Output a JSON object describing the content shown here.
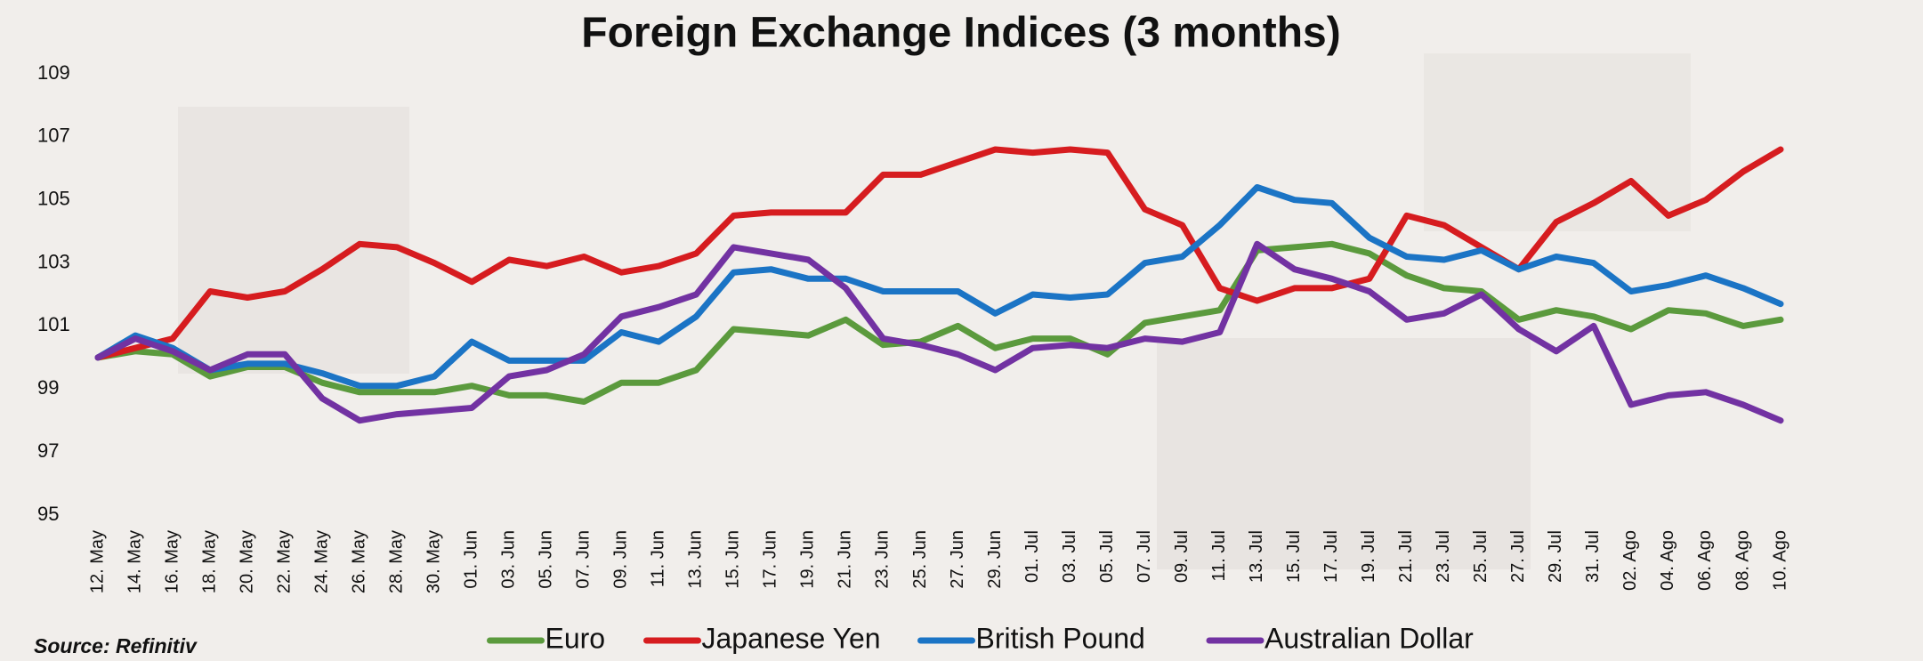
{
  "chart_data": {
    "type": "line",
    "title": "Foreign Exchange Indices (3 months)",
    "source": "Source: Refinitiv",
    "categories": [
      "12. May",
      "14. May",
      "16. May",
      "18. May",
      "20. May",
      "22. May",
      "24. May",
      "26. May",
      "28. May",
      "30. May",
      "01. Jun",
      "03. Jun",
      "05. Jun",
      "07. Jun",
      "09. Jun",
      "11. Jun",
      "13. Jun",
      "15. Jun",
      "17. Jun",
      "19. Jun",
      "21. Jun",
      "23. Jun",
      "25. Jun",
      "27. Jun",
      "29. Jun",
      "01. Jul",
      "03. Jul",
      "05. Jul",
      "07. Jul",
      "09. Jul",
      "11. Jul",
      "13. Jul",
      "15. Jul",
      "17. Jul",
      "19. Jul",
      "21. Jul",
      "23. Jul",
      "25. Jul",
      "27. Jul",
      "29. Jul",
      "31. Jul",
      "02. Ago",
      "04. Ago",
      "06. Ago",
      "08. Ago",
      "10. Ago"
    ],
    "series": [
      {
        "name": "Euro",
        "color": "#5b9a3d",
        "values": [
          100,
          100.2,
          100.1,
          99.4,
          99.7,
          99.7,
          99.2,
          98.9,
          98.9,
          98.9,
          99.1,
          98.8,
          98.8,
          98.6,
          99.2,
          99.2,
          99.6,
          100.9,
          100.8,
          100.7,
          101.2,
          100.4,
          100.5,
          101.0,
          100.3,
          100.6,
          100.6,
          100.1,
          101.1,
          101.3,
          101.5,
          103.4,
          103.5,
          103.6,
          103.3,
          102.6,
          102.2,
          102.1,
          101.2,
          101.5,
          101.3,
          100.9,
          101.5,
          101.4,
          101.0,
          101.2
        ]
      },
      {
        "name": "Japanese Yen",
        "color": "#d61c1f",
        "values": [
          100,
          100.3,
          100.6,
          102.1,
          101.9,
          102.1,
          102.8,
          103.6,
          103.5,
          103.0,
          102.4,
          103.1,
          102.9,
          103.2,
          102.7,
          102.9,
          103.3,
          104.5,
          104.6,
          104.6,
          104.6,
          105.8,
          105.8,
          106.2,
          106.6,
          106.5,
          106.6,
          106.5,
          104.7,
          104.2,
          102.2,
          101.8,
          102.2,
          102.2,
          102.5,
          104.5,
          104.2,
          103.5,
          102.8,
          104.3,
          104.9,
          105.6,
          104.5,
          105.0,
          105.9,
          106.6
        ]
      },
      {
        "name": "British Pound",
        "color": "#1b74c5",
        "values": [
          100,
          100.7,
          100.3,
          99.6,
          99.8,
          99.8,
          99.5,
          99.1,
          99.1,
          99.4,
          100.5,
          99.9,
          99.9,
          99.9,
          100.8,
          100.5,
          101.3,
          102.7,
          102.8,
          102.5,
          102.5,
          102.1,
          102.1,
          102.1,
          101.4,
          102.0,
          101.9,
          102.0,
          103.0,
          103.2,
          104.2,
          105.4,
          105.0,
          104.9,
          103.8,
          103.2,
          103.1,
          103.4,
          102.8,
          103.2,
          103.0,
          102.1,
          102.3,
          102.6,
          102.2,
          101.7
        ]
      },
      {
        "name": "Australian Dollar",
        "color": "#7232a2",
        "values": [
          100,
          100.6,
          100.2,
          99.6,
          100.1,
          100.1,
          98.7,
          98.0,
          98.2,
          98.3,
          98.4,
          99.4,
          99.6,
          100.1,
          101.3,
          101.6,
          102.0,
          103.5,
          103.3,
          103.1,
          102.2,
          100.6,
          100.4,
          100.1,
          99.6,
          100.3,
          100.4,
          100.3,
          100.6,
          100.5,
          100.8,
          103.6,
          102.8,
          102.5,
          102.1,
          101.2,
          101.4,
          102.0,
          100.9,
          100.2,
          101.0,
          98.5,
          98.8,
          98.9,
          98.5,
          98.0
        ]
      }
    ],
    "ylim": [
      95,
      109
    ],
    "yticks": [
      95,
      97,
      99,
      101,
      103,
      105,
      107,
      109
    ],
    "grid": false,
    "legend": "bottom"
  }
}
